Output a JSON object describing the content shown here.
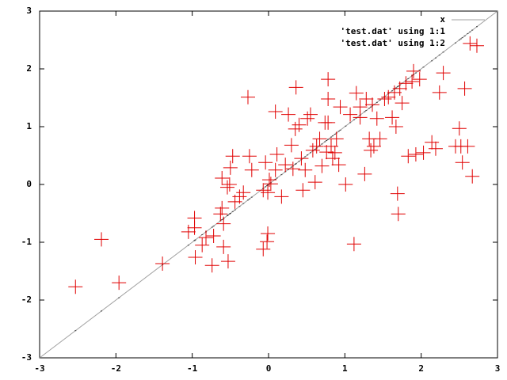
{
  "chart_data": {
    "type": "scatter",
    "xlim": [
      -3,
      3
    ],
    "ylim": [
      -3,
      3
    ],
    "xticks": [
      -3,
      -2,
      -1,
      0,
      1,
      2,
      3
    ],
    "yticks": [
      -3,
      -2,
      -1,
      0,
      1,
      2,
      3
    ],
    "legend": "top-right",
    "x": [
      -2.53,
      -2.19,
      -1.96,
      -1.39,
      -1.05,
      -0.97,
      -0.97,
      -0.96,
      -0.87,
      -0.82,
      -0.72,
      -0.74,
      -0.53,
      -0.59,
      -0.63,
      -0.61,
      -0.59,
      -0.61,
      -0.54,
      -0.51,
      -0.5,
      -0.47,
      -0.44,
      -0.38,
      -0.33,
      -0.25,
      -0.22,
      -0.27,
      -0.07,
      -0.04,
      -0.01,
      0.01,
      0.03,
      -0.07,
      -0.02,
      -0.01,
      0.09,
      0.11,
      0.09,
      0.17,
      0.22,
      0.26,
      0.3,
      0.32,
      0.35,
      0.36,
      0.4,
      0.43,
      0.45,
      0.48,
      0.51,
      0.55,
      0.58,
      0.61,
      0.63,
      0.67,
      0.7,
      0.74,
      0.76,
      0.78,
      0.78,
      0.78,
      0.82,
      0.84,
      0.87,
      0.89,
      0.92,
      0.94,
      1.01,
      1.07,
      1.12,
      1.15,
      1.2,
      1.2,
      1.26,
      1.28,
      1.32,
      1.34,
      1.36,
      1.38,
      1.42,
      1.46,
      1.52,
      1.57,
      1.62,
      1.65,
      1.67,
      1.69,
      1.7,
      1.72,
      1.75,
      1.8,
      1.83,
      1.88,
      1.9,
      1.93,
      1.98,
      2.03,
      2.14,
      2.19,
      2.24,
      2.29,
      2.45,
      2.5,
      2.52,
      2.54,
      2.57,
      2.61,
      2.64,
      2.67,
      2.73
    ],
    "series": [
      {
        "name": "x",
        "color": "#a0a0a0",
        "style": "line",
        "x": [
          -3,
          3
        ],
        "values": [
          -3,
          3
        ]
      },
      {
        "name": "'test.dat' using 1:1",
        "color": "#404040",
        "style": "dot",
        "values": [
          -2.53,
          -2.19,
          -1.96,
          -1.39,
          -1.05,
          -0.97,
          -0.97,
          -0.96,
          -0.87,
          -0.82,
          -0.72,
          -0.74,
          -0.53,
          -0.59,
          -0.63,
          -0.61,
          -0.59,
          -0.61,
          -0.54,
          -0.51,
          -0.5,
          -0.47,
          -0.44,
          -0.38,
          -0.33,
          -0.25,
          -0.22,
          -0.27,
          -0.07,
          -0.04,
          -0.01,
          0.01,
          0.03,
          -0.07,
          -0.02,
          -0.01,
          0.09,
          0.11,
          0.09,
          0.17,
          0.22,
          0.26,
          0.3,
          0.32,
          0.35,
          0.36,
          0.4,
          0.43,
          0.45,
          0.48,
          0.51,
          0.55,
          0.58,
          0.61,
          0.63,
          0.67,
          0.7,
          0.74,
          0.76,
          0.78,
          0.78,
          0.78,
          0.82,
          0.84,
          0.87,
          0.89,
          0.92,
          0.94,
          1.01,
          1.07,
          1.12,
          1.15,
          1.2,
          1.2,
          1.26,
          1.28,
          1.32,
          1.34,
          1.36,
          1.38,
          1.42,
          1.46,
          1.52,
          1.57,
          1.62,
          1.65,
          1.67,
          1.69,
          1.7,
          1.72,
          1.75,
          1.8,
          1.83,
          1.88,
          1.9,
          1.93,
          1.98,
          2.03,
          2.14,
          2.19,
          2.24,
          2.29,
          2.45,
          2.5,
          2.52,
          2.54,
          2.57,
          2.61,
          2.64,
          2.67,
          2.73
        ]
      },
      {
        "name": "'test.dat' using 1:2",
        "color": "#e00000",
        "style": "cross",
        "values": [
          -1.77,
          -0.95,
          -1.7,
          -1.37,
          -0.82,
          -0.58,
          -0.75,
          -1.26,
          -1.05,
          -0.92,
          -0.89,
          -1.4,
          -1.33,
          -1.08,
          -0.51,
          -0.41,
          -0.68,
          0.11,
          -0.05,
          0,
          0.29,
          0.49,
          -0.3,
          -0.21,
          -0.14,
          0.49,
          0.25,
          1.51,
          -0.1,
          0.38,
          -0.14,
          0.08,
          0.01,
          -1.12,
          -0.99,
          -0.85,
          1.26,
          0.52,
          0.25,
          -0.21,
          0.34,
          1.21,
          0.68,
          0.27,
          0.96,
          1.68,
          1.03,
          0.45,
          -0.1,
          0.25,
          1.14,
          1.21,
          0.59,
          0.04,
          0.66,
          0.79,
          0.32,
          1.07,
          0.56,
          1.82,
          1.48,
          1.07,
          0.66,
          0.45,
          0.55,
          0.79,
          0.34,
          1.34,
          0,
          1.21,
          -1.03,
          1.58,
          1.34,
          1.16,
          0.18,
          1.48,
          0.79,
          0.59,
          1.38,
          0.66,
          1.14,
          0.79,
          1.48,
          1.51,
          1.16,
          1.59,
          1,
          -0.16,
          -0.51,
          1.66,
          1.41,
          1.75,
          0.49,
          1.78,
          1.96,
          0.52,
          1.82,
          0.55,
          0.73,
          0.62,
          1.59,
          1.93,
          0.66,
          0.97,
          0.66,
          0.38,
          1.66,
          0.66,
          2.44,
          0.14,
          2.4
        ]
      }
    ]
  }
}
